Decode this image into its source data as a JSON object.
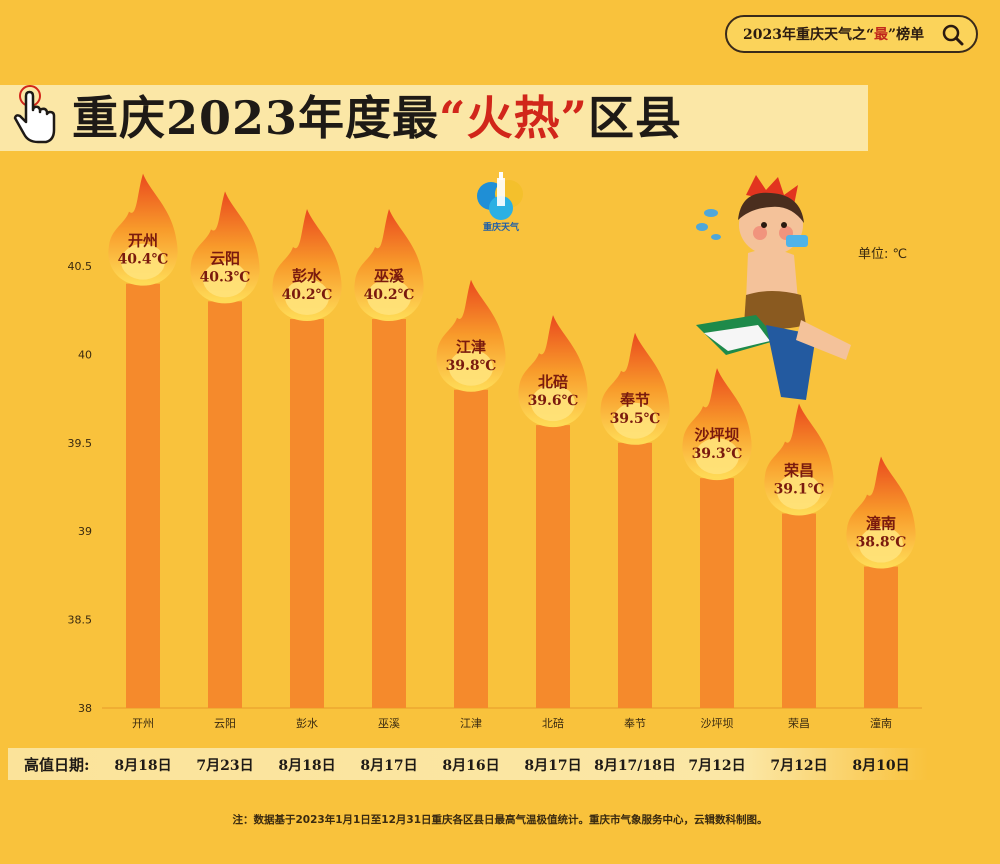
{
  "header": {
    "search_text_before": "2023年重庆天气之“",
    "search_text_highlight": "最",
    "search_text_after": "”榜单",
    "title_before": "重庆2023年度最",
    "title_highlight": "“火热”",
    "title_after": "区县"
  },
  "logo_text": "重庆天气",
  "unit_label": "单位: ℃",
  "dates_label": "高值日期:",
  "footnote": "注：数据基于2023年1月1日至12月31日重庆各区县日最高气温极值统计。重庆市气象服务中心，云辑数科制图。",
  "colors": {
    "background": "#f9c23c",
    "bar": "#f58a2c",
    "label": "#7a1a0e",
    "accent": "#d1261a"
  },
  "chart_data": {
    "type": "bar",
    "categories": [
      "开州",
      "云阳",
      "彭水",
      "巫溪",
      "江津",
      "北碚",
      "奉节",
      "沙坪坝",
      "荣昌",
      "潼南"
    ],
    "values": [
      40.4,
      40.3,
      40.2,
      40.2,
      39.8,
      39.6,
      39.5,
      39.3,
      39.1,
      38.8
    ],
    "data_labels": [
      "40.4℃",
      "40.3℃",
      "40.2℃",
      "40.2℃",
      "39.8℃",
      "39.6℃",
      "39.5℃",
      "39.3℃",
      "39.1℃",
      "38.8℃"
    ],
    "dates": [
      "8月18日",
      "7月23日",
      "8月18日",
      "8月17日",
      "8月16日",
      "8月17日",
      "8月17/18日",
      "7月12日",
      "7月12日",
      "8月10日"
    ],
    "ylim": [
      38,
      40.5
    ],
    "yticks": [
      "38",
      "38.5",
      "39",
      "39.5",
      "40",
      "40.5"
    ],
    "grid": false,
    "legend": "none"
  }
}
